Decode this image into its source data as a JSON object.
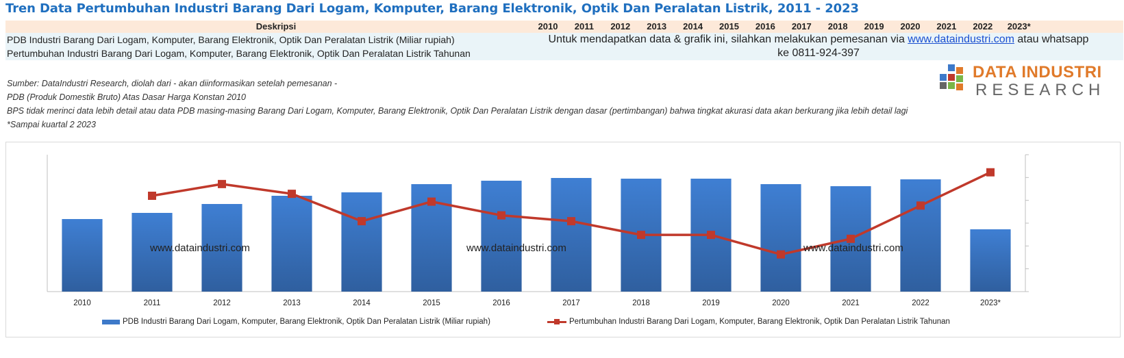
{
  "page": {
    "title": "Tren Data Pertumbuhan Industri Barang Dari Logam, Komputer, Barang Elektronik, Optik Dan Peralatan Listrik, 2011 - 2023"
  },
  "table": {
    "header_desc": "Deskripsi",
    "years": [
      "2010",
      "2011",
      "2012",
      "2013",
      "2014",
      "2015",
      "2016",
      "2017",
      "2018",
      "2019",
      "2020",
      "2021",
      "2022",
      "2023*"
    ],
    "rows": [
      "PDB Industri Barang Dari Logam, Komputer, Barang Elektronik, Optik Dan Peralatan Listrik (Miliar rupiah)",
      "Pertumbuhan Industri Barang Dari Logam, Komputer, Barang Elektronik, Optik Dan Peralatan Listrik Tahunan"
    ],
    "notice_prefix": "Untuk mendapatkan data & grafik ini, silahkan melakukan pemesanan via ",
    "notice_link": "www.dataindustri.com",
    "notice_suffix": " atau whatsapp ke 0811-924-397"
  },
  "notes": [
    "Sumber: DataIndustri Research, diolah dari - akan diinformasikan setelah pemesanan -",
    "PDB (Produk Domestik Bruto) Atas Dasar Harga Konstan 2010",
    "BPS tidak merinci data lebih detail atau data PDB masing-masing Barang Dari Logam, Komputer, Barang Elektronik, Optik Dan Peralatan Listrik dengan dasar (pertimbangan) bahwa tingkat akurasi data akan berkurang jika lebih detail lagi",
    "*Sampai kuartal 2 2023"
  ],
  "logo": {
    "line1": "DATA INDUSTRI",
    "line2": "RESEARCH",
    "colors": [
      "#e07a2a",
      "#3d79c9",
      "#7ab648",
      "#c0392b",
      "#666666"
    ]
  },
  "watermarks": [
    "www.dataindustri.com",
    "www.dataindustri.com",
    "www.dataindustri.com"
  ],
  "colors": {
    "bar": "#3d79c9",
    "line": "#c0392b",
    "title": "#1f6fbf",
    "header_bg": "#fde9d9",
    "row_bg": "#eaf4f8"
  },
  "chart_data": {
    "type": "bar",
    "categories": [
      "2010",
      "2011",
      "2012",
      "2013",
      "2014",
      "2015",
      "2016",
      "2017",
      "2018",
      "2019",
      "2020",
      "2021",
      "2022",
      "2023*"
    ],
    "series": [
      {
        "name": "PDB Industri Barang Dari Logam, Komputer, Barang Elektronik, Optik Dan Peralatan Listrik (Miliar rupiah)",
        "type": "bar",
        "axis": "left",
        "values": [
          106,
          115,
          128,
          140,
          145,
          157,
          162,
          166,
          165,
          165,
          157,
          154,
          164,
          91
        ]
      },
      {
        "name": "Pertumbuhan Industri Barang Dari Logam, Komputer, Barang Elektronik, Optik Dan Peralatan Listrik Tahunan",
        "type": "line",
        "axis": "right",
        "values": [
          null,
          3.9,
          4.5,
          4.0,
          2.6,
          3.6,
          2.9,
          2.6,
          1.9,
          1.9,
          0.9,
          1.7,
          3.4,
          5.1
        ]
      }
    ],
    "ylim_left": [
      0,
      200
    ],
    "ylim_right": [
      -1,
      6
    ],
    "y_ticks_right_count": 6,
    "grid": false,
    "legend_position": "bottom",
    "y_tick_labels_shown": false
  }
}
